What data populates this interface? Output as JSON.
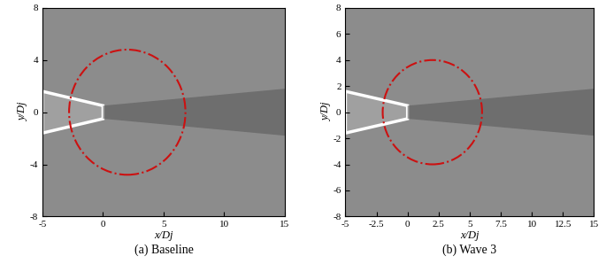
{
  "chart_data": [
    {
      "type": "field",
      "caption": "(a) Baseline",
      "xlabel": "x/Dj",
      "ylabel": "y/Dj",
      "xlim": [
        -5,
        15
      ],
      "ylim": [
        -8,
        8
      ],
      "xticks": [
        -5,
        0,
        5,
        10,
        15
      ],
      "yticks": [
        -8,
        -4,
        0,
        4,
        8
      ],
      "circle": {
        "center": [
          2,
          0
        ],
        "radius": 4.8
      },
      "color": "#cc1111",
      "line_style": "dashdot"
    },
    {
      "type": "field",
      "caption": "(b) Wave 3",
      "xlabel": "x/Dj",
      "ylabel": "y/Dj",
      "xlim": [
        -5,
        15
      ],
      "ylim": [
        -8,
        8
      ],
      "xticks": [
        -5,
        -2.5,
        0,
        2.5,
        5,
        7.5,
        10,
        12.5,
        15
      ],
      "yticks": [
        -8,
        -6,
        -4,
        -2,
        0,
        2,
        4,
        6,
        8
      ],
      "circle": {
        "center": [
          2,
          0
        ],
        "radius": 4.0
      },
      "color": "#cc1111",
      "line_style": "dashdot"
    }
  ]
}
